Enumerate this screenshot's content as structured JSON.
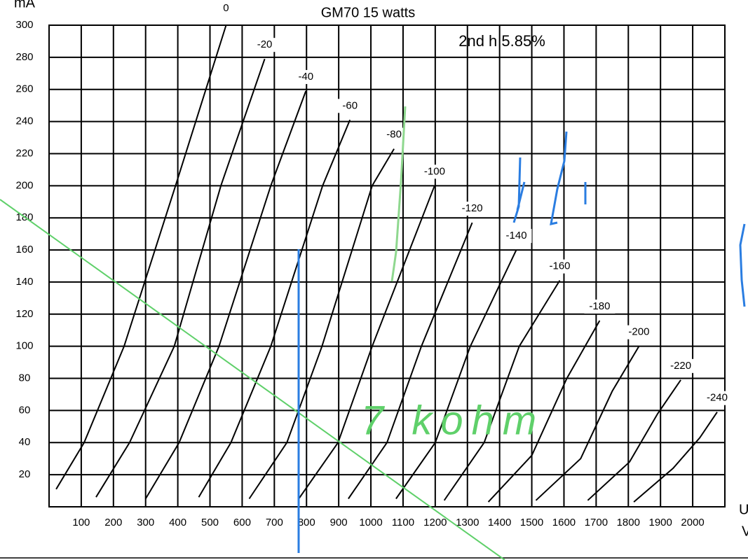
{
  "chart_data": {
    "type": "line",
    "title": "GM70 15 watts",
    "y_label": "mA",
    "x_label": [
      "U",
      "V"
    ],
    "annotations": [
      "2nd h 5.85%",
      "7 kohm"
    ],
    "xlim": [
      0,
      2100
    ],
    "ylim": [
      0,
      300
    ],
    "xticks": [
      100,
      200,
      300,
      400,
      500,
      600,
      700,
      800,
      900,
      1000,
      1100,
      1200,
      1300,
      1400,
      1500,
      1600,
      1700,
      1800,
      1900,
      2000
    ],
    "yticks": [
      20,
      40,
      60,
      80,
      100,
      120,
      140,
      160,
      180,
      200,
      220,
      240,
      260,
      280,
      300
    ],
    "grid": true,
    "color": "#000000",
    "series": [
      {
        "name": "0",
        "x": [
          22,
          109,
          233,
          393,
          550
        ],
        "values": [
          11,
          40,
          100,
          200,
          300
        ]
      },
      {
        "name": "-20",
        "x": [
          146,
          250,
          389,
          534,
          670
        ],
        "values": [
          6,
          40,
          100,
          200,
          279
        ]
      },
      {
        "name": "-40",
        "x": [
          300,
          404,
          528,
          689,
          798
        ],
        "values": [
          5,
          40,
          100,
          200,
          259
        ]
      },
      {
        "name": "-60",
        "x": [
          465,
          565,
          689,
          850,
          935
        ],
        "values": [
          6,
          40,
          100,
          200,
          241
        ]
      },
      {
        "name": "-80",
        "x": [
          622,
          739,
          848,
          1004,
          1072
        ],
        "values": [
          5,
          40,
          100,
          200,
          223
        ]
      },
      {
        "name": "-100",
        "x": [
          776,
          898,
          1004,
          1198
        ],
        "values": [
          5,
          40,
          100,
          200
        ]
      },
      {
        "name": "-120",
        "x": [
          930,
          1050,
          1157,
          1315
        ],
        "values": [
          5,
          40,
          100,
          177
        ]
      },
      {
        "name": "-140",
        "x": [
          1078,
          1200,
          1309,
          1452
        ],
        "values": [
          5,
          40,
          100,
          160
        ]
      },
      {
        "name": "-160",
        "x": [
          1228,
          1352,
          1461,
          1587
        ],
        "values": [
          4,
          40,
          100,
          141
        ]
      },
      {
        "name": "-180",
        "x": [
          1365,
          1500,
          1609,
          1711
        ],
        "values": [
          3,
          32,
          80,
          116
        ]
      },
      {
        "name": "-200",
        "x": [
          1513,
          1652,
          1750,
          1833
        ],
        "values": [
          4,
          30,
          72,
          100
        ]
      },
      {
        "name": "-220",
        "x": [
          1674,
          1804,
          1891,
          1963
        ],
        "values": [
          4,
          28,
          58,
          79
        ]
      },
      {
        "name": "-240",
        "x": [
          1817,
          1939,
          2022,
          2076
        ],
        "values": [
          3,
          24,
          43,
          59
        ]
      }
    ]
  }
}
